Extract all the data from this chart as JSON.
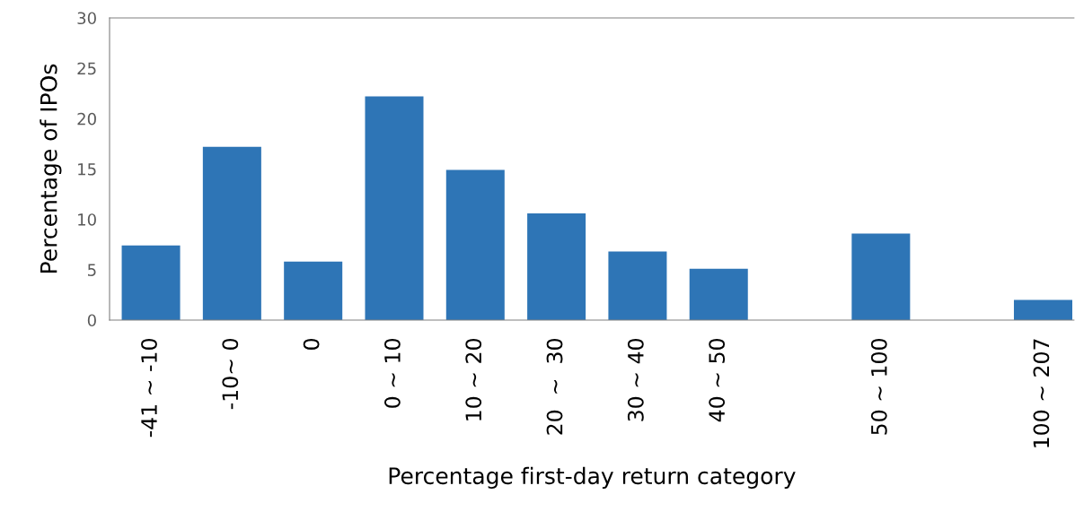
{
  "chart_data": {
    "type": "bar",
    "xlabel": "Percentage first-day return category",
    "ylabel": "Percentage of IPOs",
    "categories": [
      "-41 ~ -10",
      "-10~ 0",
      "0",
      "0 ~ 10",
      "10 ~ 20",
      "20  ~  30",
      "30 ~ 40",
      "40 ~ 50",
      null,
      "50 ~ 100",
      null,
      "100 ~ 207"
    ],
    "values": [
      7.4,
      17.2,
      5.8,
      22.2,
      14.9,
      10.6,
      6.8,
      5.1,
      null,
      8.6,
      null,
      2.0
    ],
    "color": "#2e75b6",
    "ylim": [
      0,
      30
    ],
    "yticks": [
      0,
      5,
      10,
      15,
      20,
      25,
      30
    ],
    "grid": false,
    "legend": false
  }
}
